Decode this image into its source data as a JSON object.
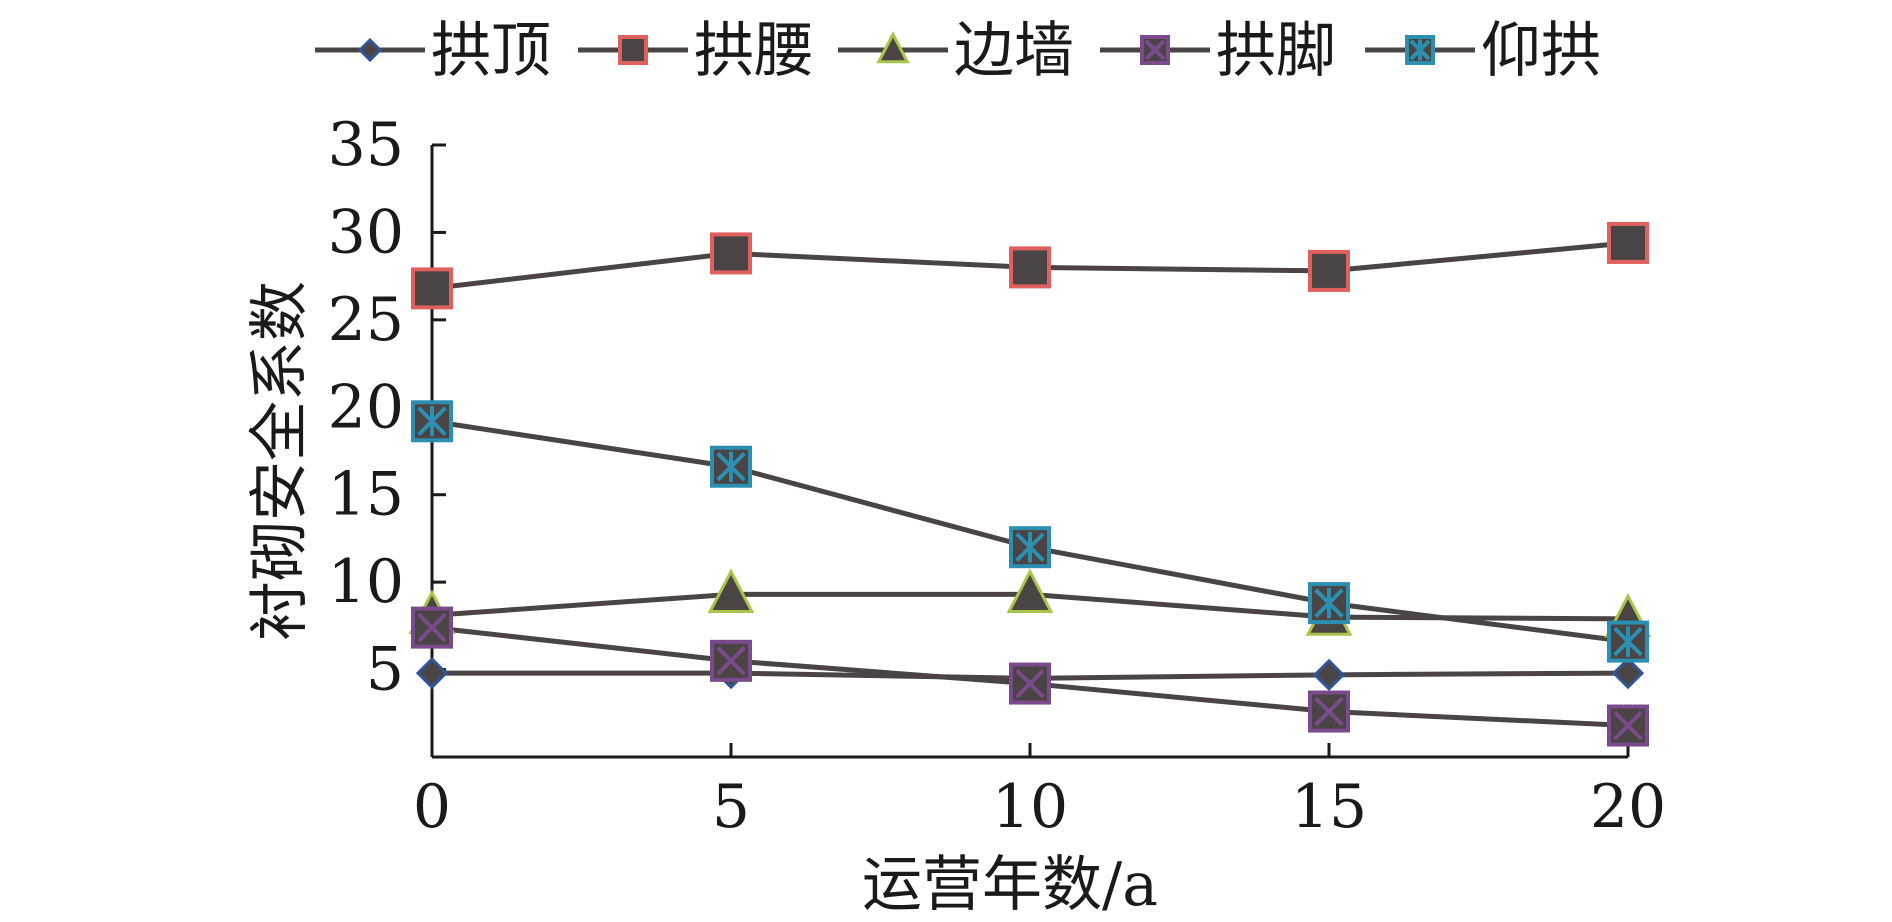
{
  "chart_data": {
    "type": "line",
    "title": "",
    "xlabel": "运营年数/a",
    "ylabel": "衬砌安全系数",
    "x": [
      0,
      5,
      10,
      15,
      20
    ],
    "xlim": [
      0,
      20
    ],
    "ylim": [
      0,
      35
    ],
    "xticks": [
      "0",
      "5",
      "10",
      "15",
      "20"
    ],
    "yticks": [
      "5",
      "10",
      "15",
      "20",
      "25",
      "30",
      "35"
    ],
    "grid": false,
    "legend_position": "top",
    "series": [
      {
        "name": "拱顶",
        "marker": "diamond",
        "marker_color": "#2f5597",
        "values": [
          4.8,
          4.8,
          4.5,
          4.7,
          4.8
        ]
      },
      {
        "name": "拱腰",
        "marker": "square",
        "marker_color": "#e06060",
        "values": [
          26.8,
          28.8,
          28.0,
          27.8,
          29.4
        ]
      },
      {
        "name": "边墙",
        "marker": "triangle",
        "marker_color": "#a8c64a",
        "values": [
          8.1,
          9.3,
          9.3,
          8.0,
          7.9
        ]
      },
      {
        "name": "拱脚",
        "marker": "x-square",
        "marker_color": "#7a4a8c",
        "values": [
          7.4,
          5.5,
          4.2,
          2.6,
          1.8
        ]
      },
      {
        "name": "仰拱",
        "marker": "star-square",
        "marker_color": "#2a8fb0",
        "values": [
          19.2,
          16.6,
          12.0,
          8.8,
          6.6
        ]
      }
    ],
    "line_color": "#4a4444"
  }
}
